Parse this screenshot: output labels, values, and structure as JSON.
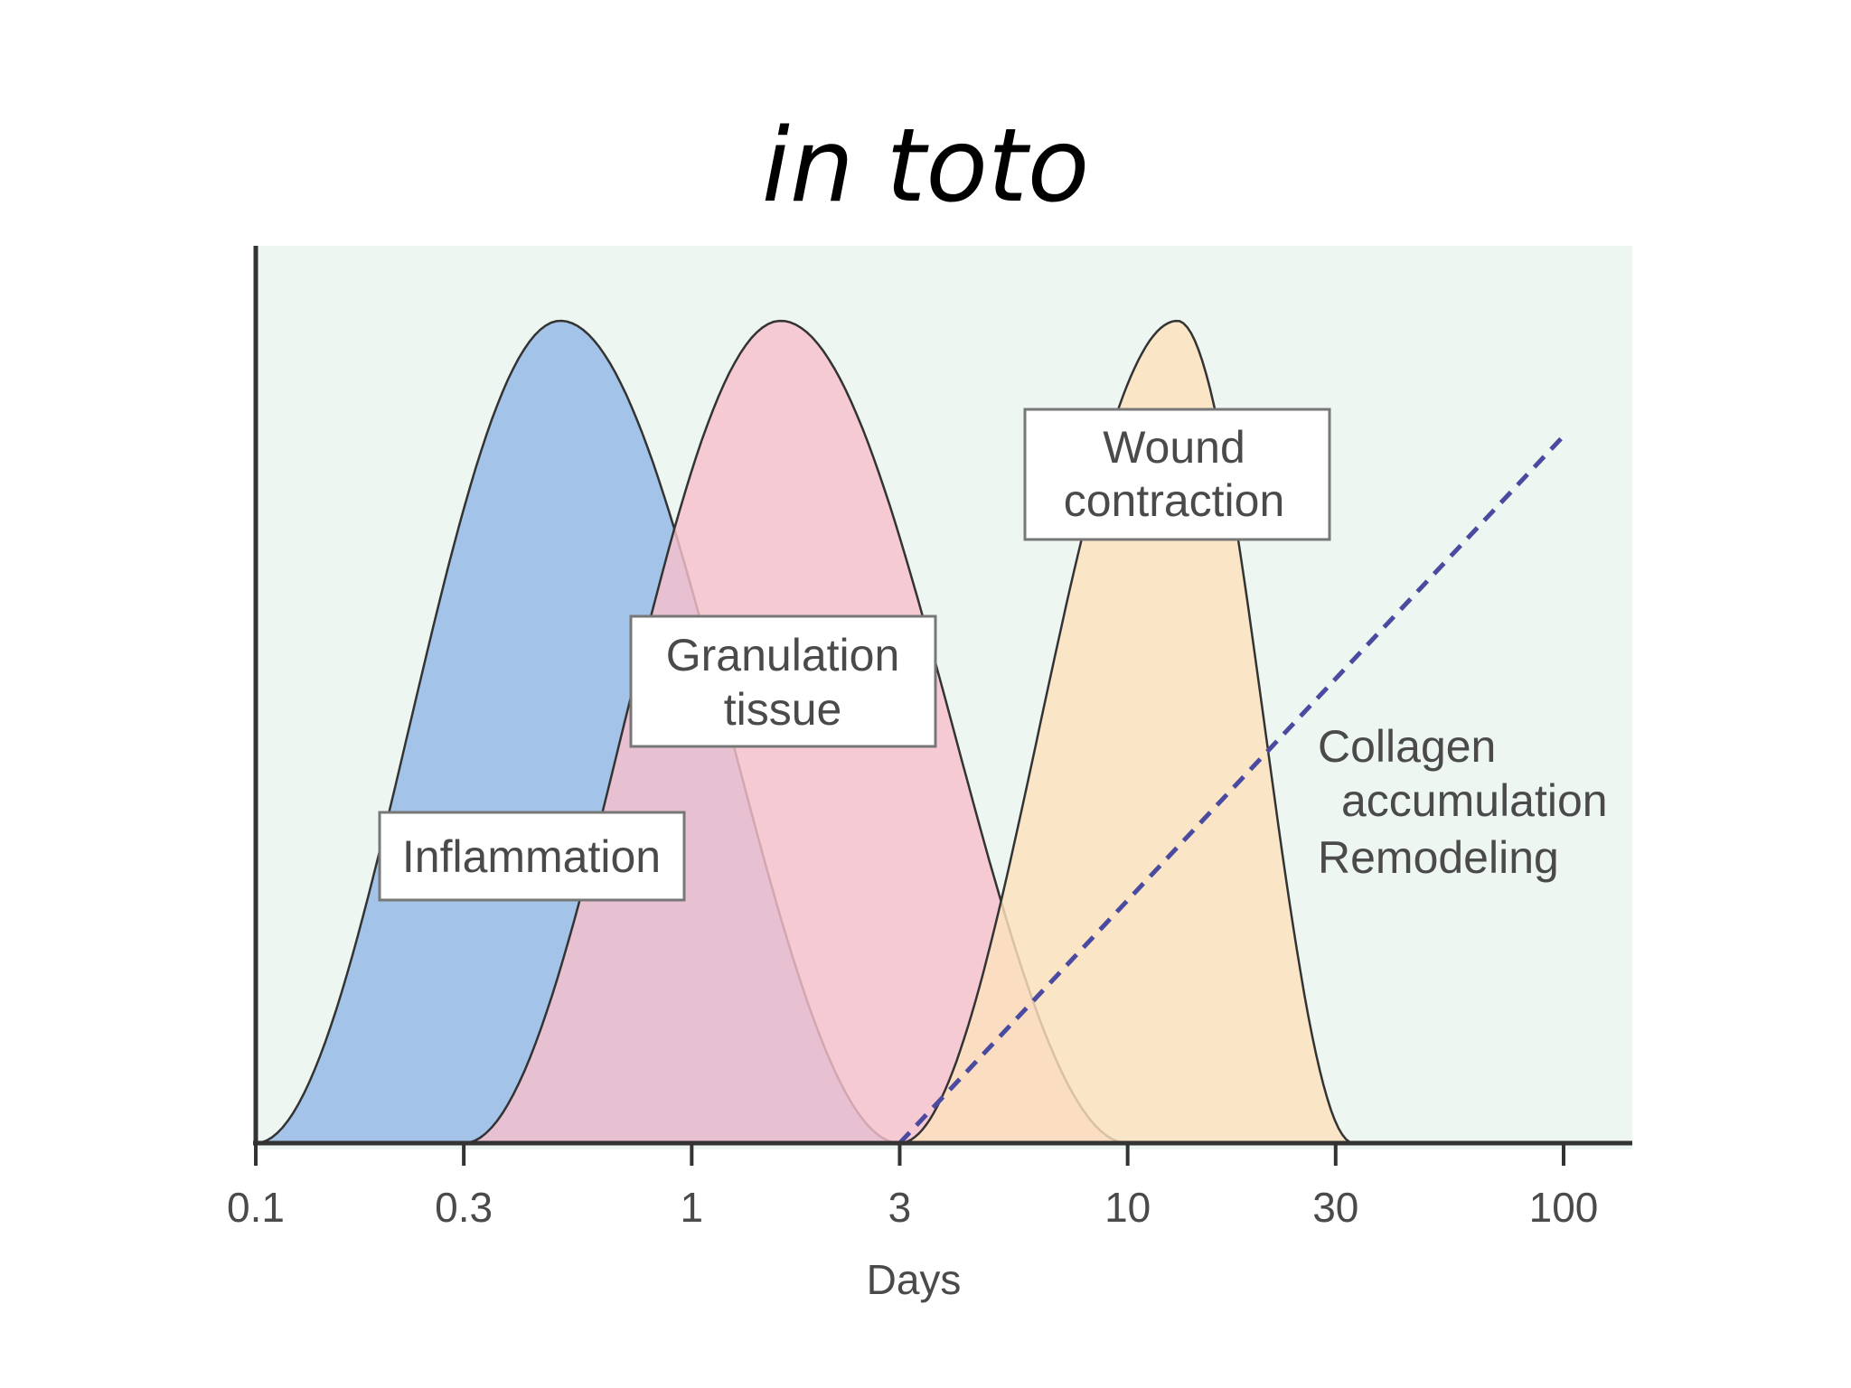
{
  "title": "in toto",
  "chart_data": {
    "type": "area",
    "title": "in toto",
    "xlabel": "Days",
    "ylabel": "",
    "x_scale": "log",
    "xlim": [
      0.1,
      100
    ],
    "ylim": [
      0,
      1
    ],
    "x_ticks": [
      0.1,
      0.3,
      1,
      3,
      10,
      30,
      100
    ],
    "x_tick_labels": [
      "0.1",
      "0.3",
      "1",
      "3",
      "10",
      "30",
      "100"
    ],
    "grid": false,
    "colors": {
      "background": "#edf6f1",
      "inflammation": "#a3c4e8",
      "granulation": "#f6c0cc",
      "contraction": "#fde1bd",
      "collagen": "#4a4aa0",
      "outline": "#333333"
    },
    "series": [
      {
        "label": "Inflammation",
        "start": 0.1,
        "peak": 0.5,
        "end": 3,
        "peak_value": 1.0
      },
      {
        "label": "Granulation tissue",
        "start": 0.3,
        "peak": 1.6,
        "end": 10,
        "peak_value": 1.0
      },
      {
        "label": "Wound contraction",
        "start": 3,
        "peak": 13,
        "end": 33,
        "peak_value": 1.0
      },
      {
        "label": "Collagen accumulation Remodeling",
        "line": "dashed",
        "x": [
          3,
          100
        ],
        "y": [
          0,
          0.86
        ]
      }
    ],
    "labels": {
      "inflammation": "Inflammation",
      "granulation_1": "Granulation",
      "granulation_2": "tissue",
      "contraction_1": "Wound",
      "contraction_2": "contraction",
      "collagen_1": "Collagen",
      "collagen_2": "accumulation",
      "collagen_3": "Remodeling"
    }
  }
}
